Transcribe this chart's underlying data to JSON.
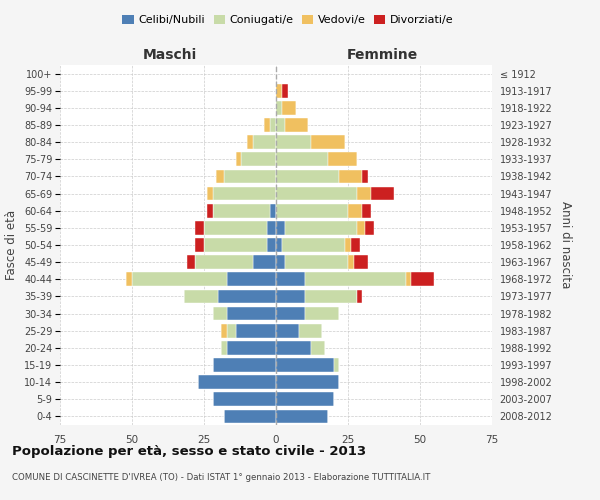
{
  "age_groups": [
    "0-4",
    "5-9",
    "10-14",
    "15-19",
    "20-24",
    "25-29",
    "30-34",
    "35-39",
    "40-44",
    "45-49",
    "50-54",
    "55-59",
    "60-64",
    "65-69",
    "70-74",
    "75-79",
    "80-84",
    "85-89",
    "90-94",
    "95-99",
    "100+"
  ],
  "birth_years": [
    "2008-2012",
    "2003-2007",
    "1998-2002",
    "1993-1997",
    "1988-1992",
    "1983-1987",
    "1978-1982",
    "1973-1977",
    "1968-1972",
    "1963-1967",
    "1958-1962",
    "1953-1957",
    "1948-1952",
    "1943-1947",
    "1938-1942",
    "1933-1937",
    "1928-1932",
    "1923-1927",
    "1918-1922",
    "1913-1917",
    "≤ 1912"
  ],
  "maschi": {
    "celibi": [
      18,
      22,
      27,
      22,
      17,
      14,
      17,
      20,
      17,
      8,
      3,
      3,
      2,
      0,
      0,
      0,
      0,
      0,
      0,
      0,
      0
    ],
    "coniugati": [
      0,
      0,
      0,
      0,
      2,
      3,
      5,
      12,
      33,
      20,
      22,
      22,
      20,
      22,
      18,
      12,
      8,
      2,
      0,
      0,
      0
    ],
    "vedovi": [
      0,
      0,
      0,
      0,
      0,
      2,
      0,
      0,
      2,
      0,
      0,
      0,
      0,
      2,
      3,
      2,
      2,
      2,
      0,
      0,
      0
    ],
    "divorziati": [
      0,
      0,
      0,
      0,
      0,
      0,
      0,
      0,
      0,
      3,
      3,
      3,
      2,
      0,
      0,
      0,
      0,
      0,
      0,
      0,
      0
    ]
  },
  "femmine": {
    "nubili": [
      18,
      20,
      22,
      20,
      12,
      8,
      10,
      10,
      10,
      3,
      2,
      3,
      0,
      0,
      0,
      0,
      0,
      0,
      0,
      0,
      0
    ],
    "coniugate": [
      0,
      0,
      0,
      2,
      5,
      8,
      12,
      18,
      35,
      22,
      22,
      25,
      25,
      28,
      22,
      18,
      12,
      3,
      2,
      0,
      0
    ],
    "vedove": [
      0,
      0,
      0,
      0,
      0,
      0,
      0,
      0,
      2,
      2,
      2,
      3,
      5,
      5,
      8,
      10,
      12,
      8,
      5,
      2,
      0
    ],
    "divorziate": [
      0,
      0,
      0,
      0,
      0,
      0,
      0,
      2,
      8,
      5,
      3,
      3,
      3,
      8,
      2,
      0,
      0,
      0,
      0,
      2,
      0
    ]
  },
  "colors": {
    "celibi_nubili": "#4e7fb5",
    "coniugati": "#c8dba8",
    "vedovi": "#f0c060",
    "divorziati": "#cc2020"
  },
  "title": "Popolazione per età, sesso e stato civile - 2013",
  "subtitle": "COMUNE DI CASCINETTE D'IVREA (TO) - Dati ISTAT 1° gennaio 2013 - Elaborazione TUTTITALIA.IT",
  "xlabel_left": "Maschi",
  "xlabel_right": "Femmine",
  "ylabel_left": "Fasce di età",
  "ylabel_right": "Anni di nascita",
  "xlim": 75,
  "bg_color": "#f5f5f5",
  "plot_bg": "#ffffff",
  "grid_color": "#cccccc"
}
